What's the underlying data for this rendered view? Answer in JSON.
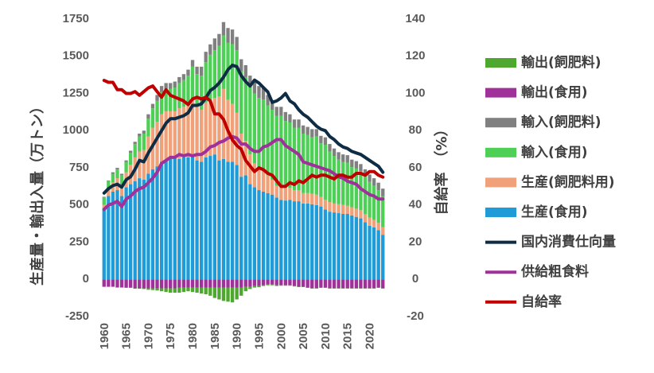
{
  "chart_data": {
    "type": "bar",
    "stacked": true,
    "x": [
      1960,
      1961,
      1962,
      1963,
      1964,
      1965,
      1966,
      1967,
      1968,
      1969,
      1970,
      1971,
      1972,
      1973,
      1974,
      1975,
      1976,
      1977,
      1978,
      1979,
      1980,
      1981,
      1982,
      1983,
      1984,
      1985,
      1986,
      1987,
      1988,
      1989,
      1990,
      1991,
      1992,
      1993,
      1994,
      1995,
      1996,
      1997,
      1998,
      1999,
      2000,
      2001,
      2002,
      2003,
      2004,
      2005,
      2006,
      2007,
      2008,
      2009,
      2010,
      2011,
      2012,
      2013,
      2014,
      2015,
      2016,
      2017,
      2018,
      2019,
      2020,
      2021,
      2022,
      2023
    ],
    "x_tick_labels": [
      "1960",
      "1965",
      "1970",
      "1975",
      "1980",
      "1985",
      "1990",
      "1995",
      "2000",
      "2005",
      "2010",
      "2015",
      "2020"
    ],
    "ylabel": "生産量・輸出入量（万トン）",
    "y2label": "自給率　（%）",
    "ylim": [
      -250,
      1750
    ],
    "yticks": [
      -250,
      0,
      250,
      500,
      750,
      1000,
      1250,
      1500,
      1750
    ],
    "y2lim": [
      -20,
      140
    ],
    "y2ticks": [
      -20,
      0,
      20,
      40,
      60,
      80,
      100,
      120,
      140
    ],
    "series": [
      {
        "name": "輸出(飼肥料)",
        "kind": "bar",
        "stack": "neg",
        "color": "#4ea72e",
        "values": [
          0,
          0,
          0,
          0,
          0,
          -2,
          -2,
          -3,
          -3,
          -5,
          -10,
          -12,
          -15,
          -20,
          -25,
          -30,
          -30,
          -35,
          -30,
          -25,
          -30,
          -35,
          -40,
          -45,
          -55,
          -70,
          -80,
          -90,
          -95,
          -100,
          -80,
          -55,
          -30,
          -15,
          -10,
          -8,
          -5,
          -5,
          -5,
          -5,
          -3,
          -3,
          -3,
          -3,
          -2,
          -2,
          -2,
          -2,
          -2,
          -2,
          -2,
          -2,
          -2,
          -2,
          -2,
          -2,
          -2,
          -2,
          -2,
          -2,
          -2,
          -2,
          -2,
          -2
        ]
      },
      {
        "name": "輸出(食用)",
        "kind": "bar",
        "stack": "neg",
        "color": "#a0309a",
        "values": [
          -50,
          -50,
          -50,
          -55,
          -55,
          -55,
          -55,
          -60,
          -60,
          -60,
          -60,
          -60,
          -60,
          -60,
          -60,
          -60,
          -60,
          -55,
          -55,
          -55,
          -55,
          -55,
          -55,
          -55,
          -55,
          -55,
          -55,
          -55,
          -55,
          -55,
          -55,
          -55,
          -50,
          -50,
          -45,
          -45,
          -40,
          -35,
          -35,
          -40,
          -40,
          -40,
          -40,
          -45,
          -50,
          -50,
          -55,
          -60,
          -60,
          -55,
          -55,
          -60,
          -60,
          -60,
          -60,
          -60,
          -60,
          -60,
          -60,
          -60,
          -60,
          -60,
          -55,
          -60
        ]
      },
      {
        "name": "生産(食用)",
        "kind": "bar",
        "stack": "pos",
        "color": "#1f9cd8",
        "values": [
          480,
          560,
          590,
          600,
          560,
          620,
          640,
          660,
          680,
          670,
          710,
          740,
          760,
          790,
          800,
          820,
          830,
          810,
          820,
          820,
          830,
          800,
          790,
          820,
          830,
          840,
          800,
          810,
          790,
          790,
          770,
          690,
          700,
          640,
          620,
          600,
          590,
          580,
          570,
          550,
          535,
          530,
          535,
          525,
          525,
          510,
          510,
          505,
          500,
          490,
          470,
          455,
          450,
          445,
          440,
          440,
          430,
          420,
          410,
          385,
          360,
          350,
          330,
          300
        ]
      },
      {
        "name": "生産(飼肥料用)",
        "kind": "bar",
        "stack": "pos",
        "color": "#f0a17a",
        "values": [
          20,
          40,
          60,
          80,
          80,
          100,
          130,
          160,
          180,
          200,
          250,
          280,
          300,
          320,
          330,
          310,
          300,
          340,
          340,
          350,
          390,
          360,
          350,
          370,
          380,
          380,
          430,
          470,
          420,
          390,
          350,
          290,
          230,
          200,
          160,
          140,
          140,
          120,
          100,
          80,
          85,
          85,
          80,
          75,
          75,
          70,
          70,
          70,
          70,
          65,
          65,
          65,
          60,
          60,
          60,
          55,
          55,
          55,
          55,
          55,
          55,
          50,
          50,
          50
        ]
      },
      {
        "name": "輸入(食用)",
        "kind": "bar",
        "stack": "pos",
        "color": "#4ecf56",
        "values": [
          50,
          60,
          60,
          60,
          60,
          70,
          80,
          90,
          100,
          110,
          120,
          130,
          140,
          150,
          150,
          150,
          160,
          170,
          180,
          200,
          210,
          220,
          230,
          270,
          300,
          320,
          340,
          360,
          380,
          400,
          420,
          420,
          430,
          450,
          470,
          480,
          480,
          470,
          470,
          470,
          480,
          450,
          440,
          420,
          420,
          400,
          390,
          380,
          390,
          360,
          370,
          340,
          320,
          300,
          290,
          290,
          270,
          270,
          260,
          250,
          240,
          230,
          220,
          210
        ]
      },
      {
        "name": "輸入(飼肥料)",
        "kind": "bar",
        "stack": "pos",
        "color": "#808080",
        "values": [
          5,
          5,
          10,
          10,
          10,
          10,
          15,
          15,
          20,
          20,
          30,
          30,
          40,
          40,
          40,
          40,
          40,
          40,
          40,
          40,
          45,
          50,
          60,
          70,
          70,
          80,
          80,
          90,
          100,
          100,
          90,
          80,
          80,
          80,
          80,
          80,
          75,
          70,
          65,
          60,
          60,
          60,
          55,
          55,
          55,
          55,
          55,
          55,
          50,
          50,
          50,
          50,
          50,
          50,
          50,
          50,
          50,
          50,
          50,
          50,
          50,
          50,
          50,
          50
        ]
      },
      {
        "name": "国内消費仕向量",
        "kind": "line",
        "axis": "y",
        "color": "#0e2d45",
        "values": [
          580,
          610,
          630,
          640,
          620,
          670,
          690,
          740,
          800,
          790,
          850,
          900,
          950,
          1000,
          1050,
          1080,
          1080,
          1090,
          1100,
          1120,
          1170,
          1170,
          1180,
          1220,
          1270,
          1290,
          1320,
          1360,
          1410,
          1440,
          1430,
          1370,
          1330,
          1300,
          1340,
          1320,
          1290,
          1260,
          1190,
          1200,
          1220,
          1250,
          1200,
          1180,
          1140,
          1110,
          1090,
          1060,
          1030,
          1010,
          1000,
          960,
          940,
          910,
          890,
          880,
          860,
          850,
          840,
          820,
          800,
          780,
          760,
          720
        ]
      },
      {
        "name": "供給粗食料",
        "kind": "line",
        "axis": "y",
        "color": "#a0309a",
        "values": [
          470,
          500,
          510,
          525,
          490,
          540,
          560,
          590,
          610,
          620,
          650,
          680,
          720,
          780,
          800,
          820,
          820,
          840,
          830,
          840,
          830,
          840,
          840,
          860,
          890,
          900,
          920,
          930,
          950,
          960,
          950,
          910,
          910,
          880,
          860,
          860,
          890,
          900,
          920,
          940,
          940,
          900,
          880,
          860,
          840,
          790,
          780,
          770,
          760,
          750,
          740,
          730,
          710,
          690,
          680,
          660,
          650,
          640,
          610,
          590,
          570,
          560,
          540,
          540
        ]
      },
      {
        "name": "自給率",
        "kind": "line",
        "axis": "y2",
        "color": "#c00000",
        "values": [
          107,
          106,
          106,
          102,
          102,
          100,
          100,
          101,
          99,
          101,
          103,
          104,
          101,
          98,
          102,
          99,
          98,
          97,
          96,
          94,
          97,
          98,
          97,
          98,
          96,
          89,
          89,
          86,
          80,
          75,
          72,
          70,
          64,
          61,
          58,
          60,
          59,
          57,
          56,
          53,
          50,
          50,
          52,
          51,
          53,
          52,
          54,
          56,
          55,
          56,
          56,
          55,
          54,
          56,
          56,
          55,
          55,
          57,
          57,
          56,
          58,
          58,
          56,
          55
        ]
      }
    ],
    "legend_position": "right",
    "legend": [
      "輸出(飼肥料)",
      "輸出(食用)",
      "輸入(飼肥料)",
      "輸入(食用)",
      "生産(飼肥料用)",
      "生産(食用)",
      "国内消費仕向量",
      "供給粗食料",
      "自給率"
    ]
  }
}
